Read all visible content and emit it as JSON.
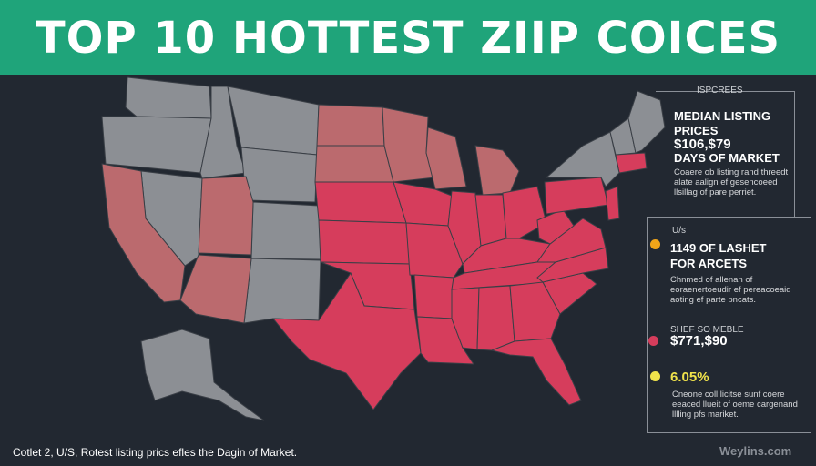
{
  "title": "TOP 10 HOTTEST ZIIP COICES",
  "colors": {
    "banner": "#1fa47a",
    "background": "#222831",
    "hot": "#d63d5c",
    "warm": "#bb6a6e",
    "cool": "#8c8f94",
    "accent_orange": "#f0a419",
    "accent_yellow": "#f1e34b"
  },
  "legend": {
    "tag": "ISPCREES",
    "heading": "MEDIAN LISTING PRICES",
    "price": "$106,$79",
    "days_label": "DAYS OF MARKET",
    "desc1": "Coaere ob listing rand threedt alate aalign ef gesencoeed llsillag of pare perriet.",
    "tag2": "U/s",
    "hot_markets": "1149 OF LASHET FOR ARCETS",
    "desc2": "Chnmed of allenan of eoraenertoeudir ef pereacoeaid aoting ef parte pncats.",
    "tag3": "SHEF SO MEBLE",
    "price2": "$771,$90",
    "pct": "6.05%",
    "desc3": "Cneone coll licitse sunf coere eeaced llueit of oeme cargenand lllling pfs mariket."
  },
  "caption": "Cotlet 2, U/S, Rotest listing prics efles the Dagin of Market.",
  "credit": "Weylins.com"
}
